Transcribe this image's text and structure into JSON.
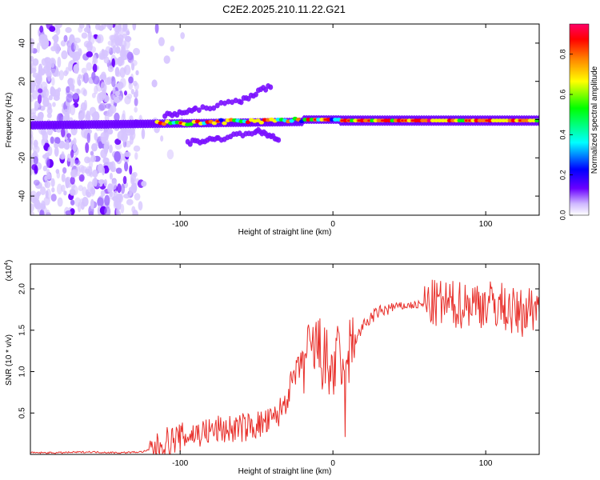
{
  "figure": {
    "title": "C2E2.2025.210.11.22.G21"
  },
  "chart_data": [
    {
      "type": "heatmap",
      "xlabel": "Height of straight line (km)",
      "ylabel": "Frequency (Hz)",
      "xlim": [
        -198,
        135
      ],
      "ylim": [
        -50,
        50
      ],
      "x_ticks": [
        -100,
        0,
        100
      ],
      "y_ticks": [
        -40,
        -20,
        0,
        20,
        40
      ],
      "colorbar": {
        "label": "Normalized spectral amplitude",
        "range": [
          0.0,
          0.95
        ],
        "ticks": [
          "0.0",
          "0.2",
          "0.4",
          "0.6",
          "0.8"
        ],
        "colormap": [
          "#ffffff",
          "#cfb8ff",
          "#6a00ff",
          "#0000ff",
          "#00ffff",
          "#00ff00",
          "#ffff00",
          "#ff8000",
          "#ff0000",
          "#ff0066"
        ]
      },
      "features": {
        "noise_region_x": [
          -198,
          -128
        ],
        "main_band_center_hz": 0,
        "upper_branch": [
          [
            -110,
            2
          ],
          [
            -90,
            5
          ],
          [
            -60,
            10
          ],
          [
            -40,
            18
          ]
        ],
        "lower_branch": [
          [
            -95,
            -12
          ],
          [
            -75,
            -10
          ],
          [
            -50,
            -6
          ],
          [
            -35,
            -10
          ]
        ],
        "steady_band_x": [
          5,
          135
        ]
      }
    },
    {
      "type": "line",
      "xlabel": "Height of straight line (km)",
      "ylabel": "SNR (10 * v/v)",
      "y_multiplier": "(x10",
      "y_multiplier_exponent": "4",
      "xlim": [
        -198,
        135
      ],
      "ylim": [
        0,
        2.3
      ],
      "x_ticks": [
        -100,
        0,
        100
      ],
      "y_ticks": [
        0.5,
        1.0,
        1.5,
        2.0
      ],
      "y_tick_labels": [
        "0.5",
        "1.0",
        "1.5",
        "2.0"
      ],
      "series": [
        {
          "color": "#e8302b",
          "x": [
            -198,
            -180,
            -160,
            -140,
            -125,
            -115,
            -110,
            -100,
            -90,
            -80,
            -75,
            -70,
            -60,
            -50,
            -40,
            -35,
            -30,
            -25,
            -20,
            -15,
            -10,
            -5,
            0,
            5,
            8,
            10,
            15,
            20,
            25,
            30,
            40,
            50,
            60,
            70,
            80,
            90,
            100,
            110,
            115,
            120,
            125,
            130,
            135
          ],
          "y": [
            0.02,
            0.02,
            0.03,
            0.02,
            0.03,
            0.08,
            0.15,
            0.2,
            0.25,
            0.28,
            0.3,
            0.3,
            0.32,
            0.35,
            0.4,
            0.5,
            0.7,
            0.95,
            1.1,
            1.2,
            1.3,
            1.1,
            1.0,
            1.2,
            0.6,
            1.2,
            1.4,
            1.55,
            1.65,
            1.72,
            1.78,
            1.8,
            1.81,
            1.82,
            1.8,
            1.83,
            1.82,
            1.8,
            1.75,
            1.7,
            1.72,
            1.78,
            1.8
          ]
        }
      ]
    }
  ]
}
